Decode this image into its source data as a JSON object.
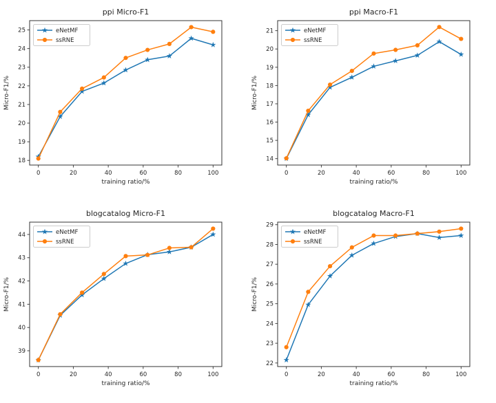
{
  "figure": {
    "background": "#ffffff",
    "text_color": "#262626",
    "axis_color": "#333333",
    "legend_border_color": "#cccccc",
    "legend_background": "#ffffff"
  },
  "colors": {
    "eNetMF": "#1f77b4",
    "ssRNE": "#ff7f0e"
  },
  "legend_entries": [
    "eNetMF",
    "ssRNE"
  ],
  "chart_data": [
    {
      "type": "line",
      "title": "ppi Micro-F1",
      "xlabel": "training ratio/%",
      "ylabel": "Micro-F1/%",
      "x": [
        0,
        12.5,
        25,
        37.5,
        50,
        62.5,
        75,
        87.5,
        100
      ],
      "xlim": [
        -5,
        105
      ],
      "ylim": [
        17.75,
        25.5
      ],
      "xticks": [
        0,
        20,
        40,
        60,
        80,
        100
      ],
      "yticks": [
        18,
        19,
        20,
        21,
        22,
        23,
        24,
        25
      ],
      "grid": false,
      "legend_position": "upper left",
      "series": [
        {
          "name": "eNetMF",
          "color": "#1f77b4",
          "marker": "star",
          "values": [
            18.2,
            20.35,
            21.7,
            22.15,
            22.85,
            23.4,
            23.6,
            24.55,
            24.2
          ]
        },
        {
          "name": "ssRNE",
          "color": "#ff7f0e",
          "marker": "circle",
          "values": [
            18.1,
            20.6,
            21.85,
            22.45,
            23.5,
            23.93,
            24.25,
            25.15,
            24.9
          ]
        }
      ]
    },
    {
      "type": "line",
      "title": "ppi Macro-F1",
      "xlabel": "training ratio/%",
      "ylabel": "Micro-F1/%",
      "x": [
        0,
        12.5,
        25,
        37.5,
        50,
        62.5,
        75,
        87.5,
        100
      ],
      "xlim": [
        -5,
        105
      ],
      "ylim": [
        13.65,
        21.55
      ],
      "xticks": [
        0,
        20,
        40,
        60,
        80,
        100
      ],
      "yticks": [
        14,
        15,
        16,
        17,
        18,
        19,
        20,
        21
      ],
      "grid": false,
      "legend_position": "upper left",
      "series": [
        {
          "name": "eNetMF",
          "color": "#1f77b4",
          "marker": "star",
          "values": [
            14.0,
            16.4,
            17.9,
            18.45,
            19.05,
            19.35,
            19.65,
            20.4,
            19.7
          ]
        },
        {
          "name": "ssRNE",
          "color": "#ff7f0e",
          "marker": "circle",
          "values": [
            14.02,
            16.62,
            18.05,
            18.8,
            19.75,
            19.95,
            20.2,
            21.2,
            20.55
          ]
        }
      ]
    },
    {
      "type": "line",
      "title": "blogcatalog Micro-F1",
      "xlabel": "training ratio/%",
      "ylabel": "Micro-F1/%",
      "x": [
        0,
        12.5,
        25,
        37.5,
        50,
        62.5,
        75,
        87.5,
        100
      ],
      "xlim": [
        -5,
        105
      ],
      "ylim": [
        38.32,
        44.53
      ],
      "xticks": [
        0,
        20,
        40,
        60,
        80,
        100
      ],
      "yticks": [
        39,
        40,
        41,
        42,
        43,
        44
      ],
      "grid": false,
      "legend_position": "upper left",
      "series": [
        {
          "name": "eNetMF",
          "color": "#1f77b4",
          "marker": "star",
          "values": [
            38.6,
            40.52,
            41.4,
            42.1,
            42.75,
            43.13,
            43.25,
            43.45,
            44.0
          ]
        },
        {
          "name": "ssRNE",
          "color": "#ff7f0e",
          "marker": "circle",
          "values": [
            38.6,
            40.57,
            41.5,
            42.3,
            43.07,
            43.12,
            43.42,
            43.45,
            44.25
          ]
        }
      ]
    },
    {
      "type": "line",
      "title": "blogcatalog Macro-F1",
      "xlabel": "training ratio/%",
      "ylabel": "Micro-F1/%",
      "x": [
        0,
        12.5,
        25,
        37.5,
        50,
        62.5,
        75,
        87.5,
        100
      ],
      "xlim": [
        -5,
        105
      ],
      "ylim": [
        21.82,
        29.13
      ],
      "xticks": [
        0,
        20,
        40,
        60,
        80,
        100
      ],
      "yticks": [
        22,
        23,
        24,
        25,
        26,
        27,
        28,
        29
      ],
      "grid": false,
      "legend_position": "upper left",
      "series": [
        {
          "name": "eNetMF",
          "color": "#1f77b4",
          "marker": "star",
          "values": [
            22.15,
            24.95,
            26.4,
            27.45,
            28.05,
            28.4,
            28.55,
            28.35,
            28.45
          ]
        },
        {
          "name": "ssRNE",
          "color": "#ff7f0e",
          "marker": "circle",
          "values": [
            22.8,
            25.6,
            26.9,
            27.85,
            28.45,
            28.45,
            28.55,
            28.65,
            28.8
          ]
        }
      ]
    }
  ]
}
